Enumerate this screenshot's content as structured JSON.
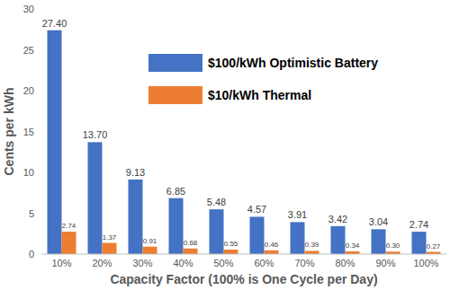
{
  "chart_data": {
    "type": "bar",
    "x_label": "Capacity Factor (100% is One Cycle per Day)",
    "y_label": "Cents per kWh",
    "categories": [
      "10%",
      "20%",
      "30%",
      "40%",
      "50%",
      "60%",
      "70%",
      "80%",
      "90%",
      "100%"
    ],
    "series": [
      {
        "name": "$100/kWh Optimistic Battery",
        "color": "#4472c4",
        "values": [
          27.4,
          13.7,
          9.13,
          6.85,
          5.48,
          4.57,
          3.91,
          3.42,
          3.04,
          2.74
        ],
        "value_labels": [
          "27.40",
          "13.70",
          "9.13",
          "6.85",
          "5.48",
          "4.57",
          "3.91",
          "3.42",
          "3.04",
          "2.74"
        ]
      },
      {
        "name": "$10/kWh Thermal",
        "color": "#ed7d31",
        "values": [
          2.74,
          1.37,
          0.91,
          0.68,
          0.55,
          0.46,
          0.39,
          0.34,
          0.3,
          0.27
        ],
        "value_labels": [
          "2.74",
          "1.37",
          "0.91",
          "0.68",
          "0.55",
          "0.46",
          "0.39",
          "0.34",
          "0.30",
          "0.27"
        ]
      }
    ],
    "ylim": [
      0,
      30
    ],
    "yticks": [
      0,
      5,
      10,
      15,
      20,
      25,
      30
    ],
    "grid": false,
    "legend": "upper center",
    "data_labels": true
  }
}
